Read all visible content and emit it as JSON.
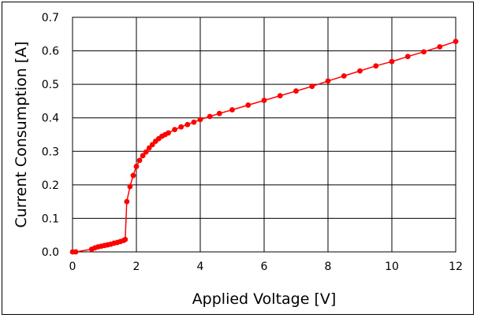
{
  "chart_data": {
    "type": "line",
    "title": "",
    "xlabel": "Applied Voltage [V]",
    "ylabel": "Current Consumption [A]",
    "xlim": [
      0,
      12
    ],
    "ylim": [
      0,
      0.7
    ],
    "x_ticks": [
      "0",
      "2",
      "4",
      "6",
      "8",
      "10",
      "12"
    ],
    "y_ticks": [
      "0.0",
      "0.1",
      "0.2",
      "0.3",
      "0.4",
      "0.5",
      "0.6",
      "0.7"
    ],
    "grid": true,
    "legend": "none",
    "series": [
      {
        "color": "#ff0000",
        "x": [
          0.0,
          0.1,
          0.6,
          0.7,
          0.8,
          0.9,
          1.0,
          1.1,
          1.2,
          1.3,
          1.4,
          1.5,
          1.6,
          1.65,
          1.7,
          1.8,
          1.9,
          2.0,
          2.1,
          2.2,
          2.3,
          2.4,
          2.5,
          2.6,
          2.7,
          2.8,
          2.9,
          3.0,
          3.2,
          3.4,
          3.6,
          3.8,
          4.0,
          4.3,
          4.6,
          5.0,
          5.5,
          6.0,
          6.5,
          7.0,
          7.5,
          8.0,
          8.5,
          9.0,
          9.5,
          10.0,
          10.5,
          11.0,
          11.5,
          12.0
        ],
        "y": [
          0.0,
          0.0,
          0.008,
          0.012,
          0.015,
          0.017,
          0.019,
          0.021,
          0.023,
          0.026,
          0.028,
          0.031,
          0.034,
          0.037,
          0.15,
          0.195,
          0.228,
          0.255,
          0.273,
          0.287,
          0.298,
          0.31,
          0.32,
          0.33,
          0.338,
          0.345,
          0.35,
          0.355,
          0.365,
          0.373,
          0.38,
          0.387,
          0.395,
          0.404,
          0.413,
          0.424,
          0.438,
          0.452,
          0.466,
          0.48,
          0.494,
          0.51,
          0.525,
          0.54,
          0.555,
          0.568,
          0.583,
          0.597,
          0.612,
          0.628
        ]
      }
    ]
  }
}
